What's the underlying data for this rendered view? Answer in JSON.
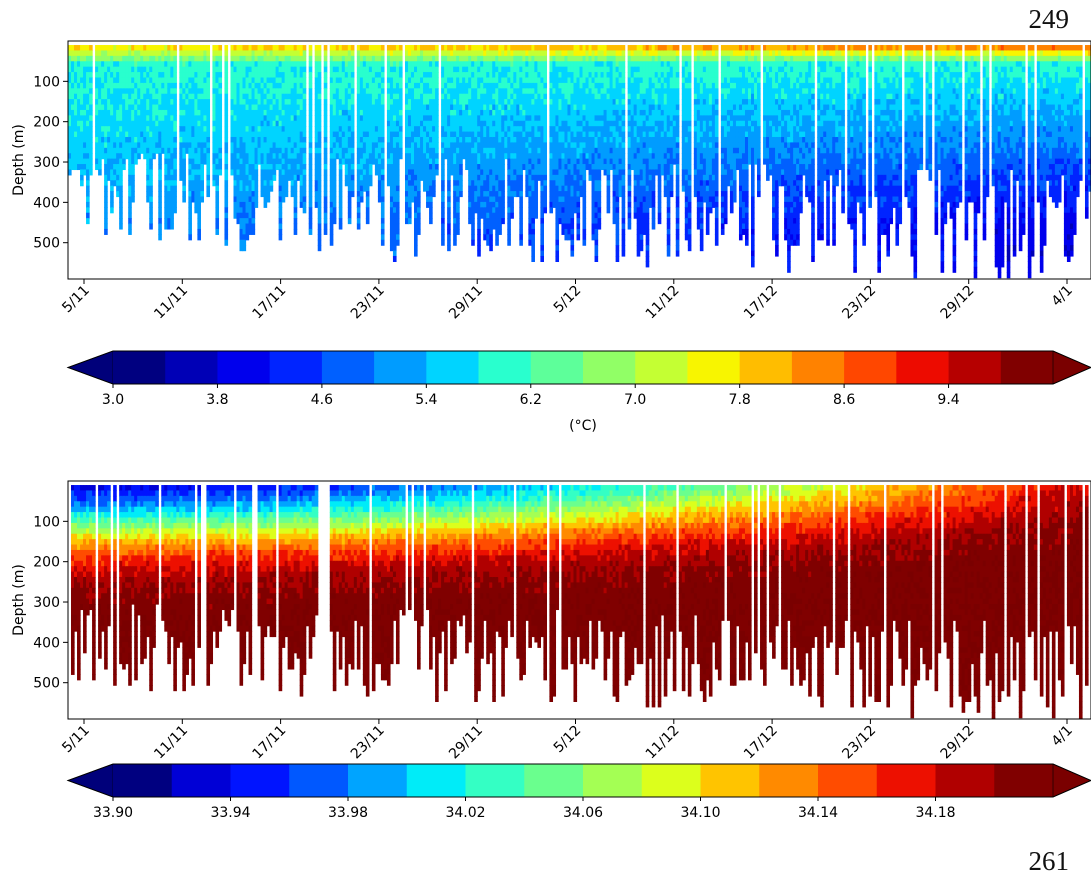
{
  "page_numbers": {
    "top": "249",
    "bottom": "261"
  },
  "chart_data": [
    {
      "type": "heatmap",
      "variable": "temperature",
      "title": "",
      "xlabel": "",
      "ylabel": "Depth (m)",
      "x_ticks": [
        "5/11",
        "11/11",
        "17/11",
        "23/11",
        "29/11",
        "5/12",
        "11/12",
        "17/12",
        "23/12",
        "29/12",
        "4/1"
      ],
      "y_ticks": [
        100,
        200,
        300,
        400,
        500
      ],
      "ylim": [
        590,
        0
      ],
      "colorbar": {
        "label": "(°C)",
        "min": 3.0,
        "max": 10.0,
        "step": 0.4,
        "ticks": [
          "3.0",
          "3.8",
          "4.6",
          "5.4",
          "6.2",
          "7.0",
          "7.8",
          "8.6",
          "9.4"
        ],
        "extend": "both",
        "colors": [
          "#000080",
          "#0000b6",
          "#0000ed",
          "#0024ff",
          "#0060ff",
          "#009cff",
          "#00d4ff",
          "#29ffce",
          "#5dff9a",
          "#91ff66",
          "#c4ff33",
          "#f8f500",
          "#ffbd00",
          "#ff8200",
          "#ff4700",
          "#ed0b00",
          "#b60000",
          "#800000"
        ],
        "under_color": "#00007a",
        "over_color": "#7a0000"
      },
      "profile": {
        "surface_value": 8.2,
        "surface_value_late": 9.6,
        "deep_value_early": 5.2,
        "deep_value_late": 3.9,
        "max_depth_early": 480,
        "max_depth_late": 570
      }
    },
    {
      "type": "heatmap",
      "variable": "salinity",
      "title": "",
      "xlabel": "",
      "ylabel": "Depth (m)",
      "x_ticks": [
        "5/11",
        "11/11",
        "17/11",
        "23/11",
        "29/11",
        "5/12",
        "11/12",
        "17/12",
        "23/12",
        "29/12",
        "4/1"
      ],
      "y_ticks": [
        100,
        200,
        300,
        400,
        500
      ],
      "ylim": [
        590,
        0
      ],
      "colorbar": {
        "label": "",
        "min": 33.9,
        "max": 34.22,
        "step": 0.02,
        "ticks": [
          "33.90",
          "33.94",
          "33.98",
          "34.02",
          "34.06",
          "34.10",
          "34.14",
          "34.18"
        ],
        "extend": "both",
        "colors": [
          "#000080",
          "#0000d6",
          "#0014ff",
          "#0058ff",
          "#00a4ff",
          "#00ecf8",
          "#34ffc4",
          "#6aff8e",
          "#a4ff54",
          "#dcff1c",
          "#ffc400",
          "#ff8a00",
          "#ff4c00",
          "#ed1000",
          "#b00000",
          "#800000"
        ],
        "under_color": "#00007a",
        "over_color": "#7a0000"
      },
      "profile": {
        "surface_value_early": 33.89,
        "surface_value_late": 34.16,
        "deep_value": 34.22,
        "halocline_depth_early": 110,
        "halocline_depth_late": 40
      }
    }
  ]
}
